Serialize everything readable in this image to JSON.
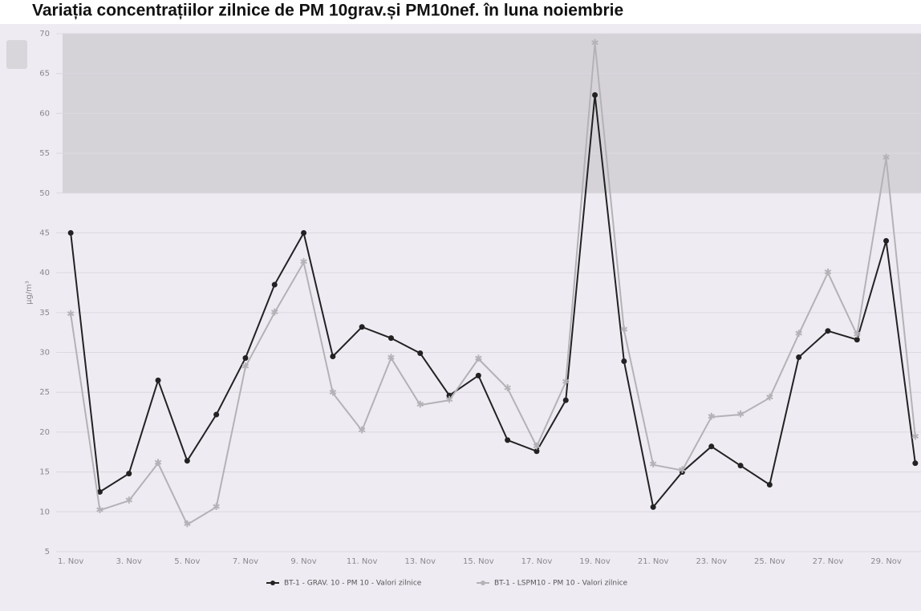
{
  "chart_data": {
    "type": "line",
    "title": "Variația concentrațiilor zilnice de PM 10grav.și PM10nef. în luna noiembrie",
    "y_label": "µg/m³",
    "categories": [
      "1. Nov",
      null,
      "3. Nov",
      null,
      "5. Nov",
      null,
      "7. Nov",
      null,
      "9. Nov",
      null,
      "11. Nov",
      null,
      "13. Nov",
      null,
      "15. Nov",
      null,
      "17. Nov",
      null,
      "19. Nov",
      null,
      "21. Nov",
      null,
      "23. Nov",
      null,
      "25. Nov",
      null,
      "27. Nov",
      null,
      "29. Nov",
      null
    ],
    "series": [
      {
        "name": "BT-1 - GRAV. 10 - PM 10 - Valori zilnice",
        "color": "#222222",
        "values": [
          45,
          12.5,
          14.8,
          26.5,
          16.4,
          22.2,
          29.3,
          38.5,
          45,
          29.5,
          33.2,
          31.8,
          29.9,
          24.6,
          27.1,
          19,
          17.6,
          24,
          62.3,
          28.9,
          10.6,
          15,
          18.2,
          15.8,
          13.4,
          29.4,
          32.7,
          31.6,
          44,
          16.1
        ]
      },
      {
        "name": "BT-1 - LSPM10 - PM 10 - Valori zilnice",
        "color": "#b4b2b6",
        "values": [
          34.8,
          10.2,
          11.4,
          16.1,
          8.4,
          10.6,
          28.2,
          35,
          41.3,
          24.9,
          20.2,
          29.3,
          23.4,
          24,
          29.2,
          25.5,
          18.2,
          26.3,
          68.8,
          32.8,
          15.9,
          15.2,
          21.9,
          22.2,
          24.3,
          32.3,
          40,
          32.2,
          54.4,
          19.4
        ]
      }
    ],
    "plot_band": [
      50,
      70
    ],
    "plot_band_color": "#d5d3d8",
    "ylim": [
      5,
      70
    ],
    "yticks": [
      5,
      10,
      15,
      20,
      25,
      30,
      35,
      40,
      45,
      50,
      55,
      60,
      65,
      70
    ],
    "grid": true
  }
}
